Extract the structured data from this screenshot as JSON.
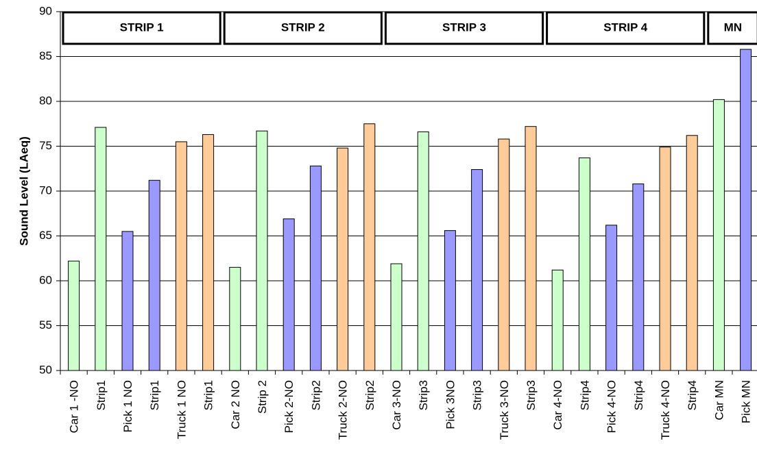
{
  "chart_data": {
    "type": "bar",
    "y_label": "Sound Level (LAeq)",
    "categories": [
      "Car 1 -NO",
      "Strip1",
      "Pick 1 NO",
      "Strip1",
      "Truck 1 NO",
      "Strip1",
      "Car 2 NO",
      "Strip 2",
      "Pick 2-NO",
      "Strip2",
      "Truck 2-NO",
      "Strip2",
      "Car 3-NO",
      "Strip3",
      "Pick 3NO",
      "Strip3",
      "Truck 3-NO",
      "Strip3",
      "Car 4-NO",
      "Strip4",
      "Pick 4-NO",
      "Strip4",
      "Truck 4-NO",
      "Strip4",
      "Car MN",
      "Pick MN"
    ],
    "values": [
      62.2,
      77.1,
      65.5,
      71.2,
      75.5,
      76.3,
      61.5,
      76.7,
      66.9,
      72.8,
      74.8,
      77.5,
      61.9,
      76.6,
      65.6,
      72.4,
      75.8,
      77.2,
      61.2,
      73.7,
      66.2,
      70.8,
      74.9,
      76.2,
      80.2,
      85.8
    ],
    "colors": [
      "#ccffcc",
      "#ccffcc",
      "#9999ff",
      "#9999ff",
      "#ffcc99",
      "#ffcc99",
      "#ccffcc",
      "#ccffcc",
      "#9999ff",
      "#9999ff",
      "#ffcc99",
      "#ffcc99",
      "#ccffcc",
      "#ccffcc",
      "#9999ff",
      "#9999ff",
      "#ffcc99",
      "#ffcc99",
      "#ccffcc",
      "#ccffcc",
      "#9999ff",
      "#9999ff",
      "#ffcc99",
      "#ffcc99",
      "#ccffcc",
      "#9999ff"
    ],
    "groups": [
      "STRIP 1",
      "STRIP 2",
      "STRIP 3",
      "STRIP 4",
      "MN"
    ],
    "ylim": [
      50,
      90
    ],
    "yticks": [
      50,
      55,
      60,
      65,
      70,
      75,
      80,
      85,
      90
    ],
    "grid": true
  }
}
